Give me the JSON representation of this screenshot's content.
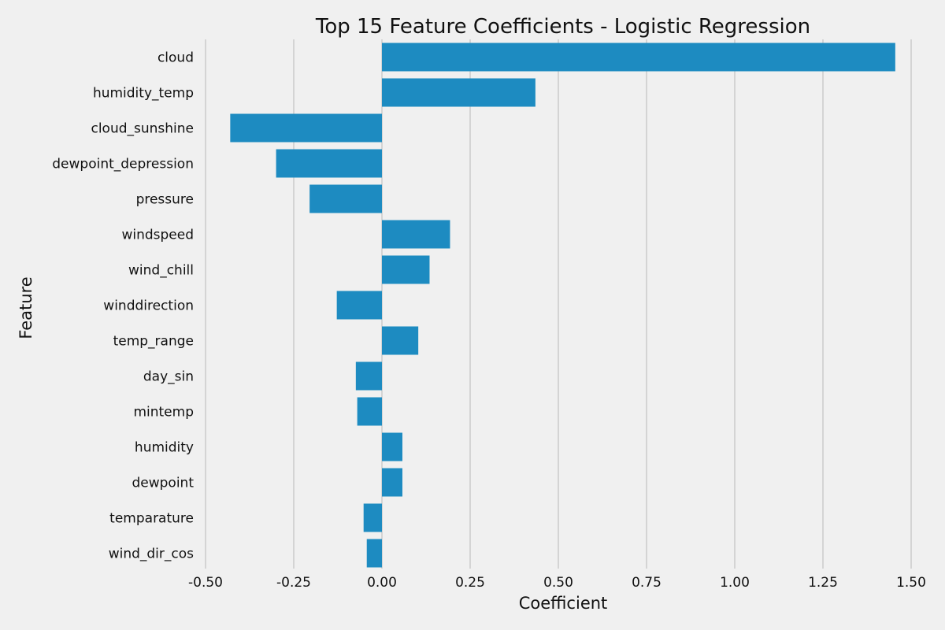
{
  "chart_data": {
    "type": "bar",
    "orientation": "horizontal",
    "title": "Top 15 Feature Coefficients - Logistic Regression",
    "xlabel": "Coefficient",
    "ylabel": "Feature",
    "xlim": [
      -0.5,
      1.5
    ],
    "xticks": [
      -0.5,
      -0.25,
      0.0,
      0.25,
      0.5,
      0.75,
      1.0,
      1.25,
      1.5
    ],
    "xtick_labels": [
      "-0.50",
      "-0.25",
      "0.00",
      "0.25",
      "0.50",
      "0.75",
      "1.00",
      "1.25",
      "1.50"
    ],
    "grid": "vertical",
    "bar_color": "#1d8bc1",
    "background_color": "#f0f0f0",
    "categories": [
      "cloud",
      "humidity_temp",
      "cloud_sunshine",
      "dewpoint_depression",
      "pressure",
      "windspeed",
      "wind_chill",
      "winddirection",
      "temp_range",
      "day_sin",
      "mintemp",
      "humidity",
      "dewpoint",
      "temparature",
      "wind_dir_cos"
    ],
    "values": [
      1.455,
      0.435,
      -0.43,
      -0.3,
      -0.205,
      0.193,
      0.135,
      -0.128,
      0.103,
      -0.074,
      -0.07,
      0.058,
      0.058,
      -0.052,
      -0.043
    ]
  }
}
